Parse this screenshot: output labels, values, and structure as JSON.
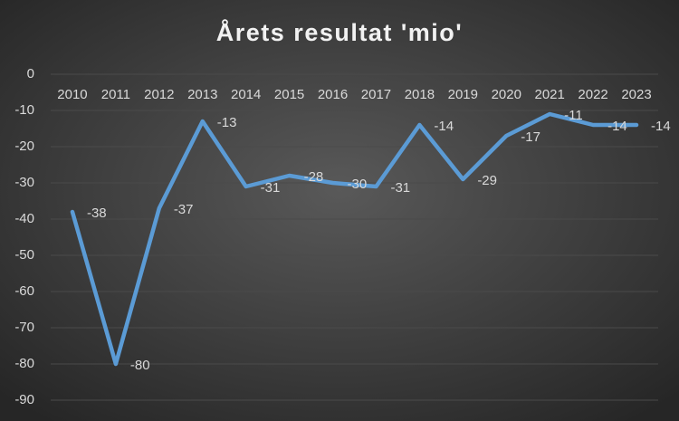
{
  "chart_data": {
    "type": "line",
    "title": "Årets resultat 'mio'",
    "categories": [
      "2010",
      "2011",
      "2012",
      "2013",
      "2014",
      "2015",
      "2016",
      "2017",
      "2018",
      "2019",
      "2020",
      "2021",
      "2022",
      "2023"
    ],
    "series": [
      {
        "name": "Årets resultat",
        "color": "#5b9bd5",
        "values": [
          -38,
          -80,
          -37,
          -13,
          -31,
          -28,
          -30,
          -31,
          -14,
          -29,
          -17,
          -11,
          -14,
          -14
        ]
      }
    ],
    "ylim": [
      -90,
      0
    ],
    "yticks": [
      0,
      -10,
      -20,
      -30,
      -40,
      -50,
      -60,
      -70,
      -80,
      -90
    ],
    "grid": true
  }
}
